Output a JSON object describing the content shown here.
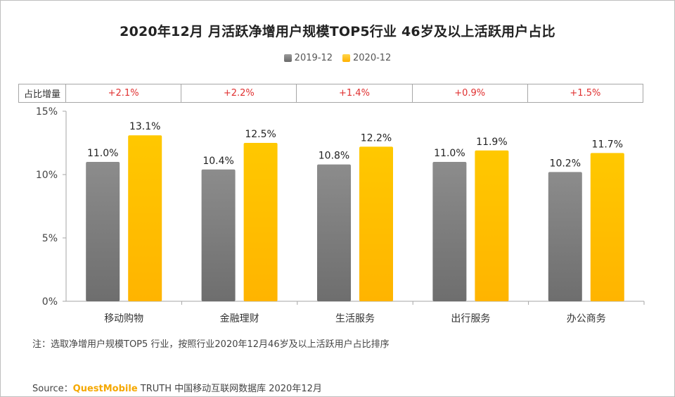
{
  "title": "2020年12月 月活跃净增用户规模TOP5行业 46岁及以上活跃用户占比",
  "increment_header": "占比增量",
  "colors": {
    "series_2019": "#7a7a7a",
    "series_2020": "#ffc000",
    "increment": "#e03030"
  },
  "chart_data": {
    "type": "bar",
    "title": "2020年12月 月活跃净增用户规模TOP5行业 46岁及以上活跃用户占比",
    "categories": [
      "移动购物",
      "金融理财",
      "生活服务",
      "出行服务",
      "办公商务"
    ],
    "series": [
      {
        "name": "2019-12",
        "values": [
          11.0,
          10.4,
          10.8,
          11.0,
          10.2
        ],
        "labels": [
          "11.0%",
          "10.4%",
          "10.8%",
          "11.0%",
          "10.2%"
        ]
      },
      {
        "name": "2020-12",
        "values": [
          13.1,
          12.5,
          12.2,
          11.9,
          11.7
        ],
        "labels": [
          "13.1%",
          "12.5%",
          "12.2%",
          "11.9%",
          "11.7%"
        ]
      }
    ],
    "increments": [
      "+2.1%",
      "+2.2%",
      "+1.4%",
      "+0.9%",
      "+1.5%"
    ],
    "ylim": [
      0,
      15
    ],
    "yticks": [
      0,
      5,
      10,
      15
    ],
    "ytick_labels": [
      "0%",
      "5%",
      "10%",
      "15%"
    ],
    "legend_position": "top-center",
    "grid": false
  },
  "note": "注：选取净增用户规模TOP5 行业，按照行业2020年12月46岁及以上活跃用户占比排序",
  "source": {
    "prefix": "Source：",
    "brand": "QuestMobile",
    "rest": " TRUTH 中国移动互联网数据库 2020年12月"
  }
}
